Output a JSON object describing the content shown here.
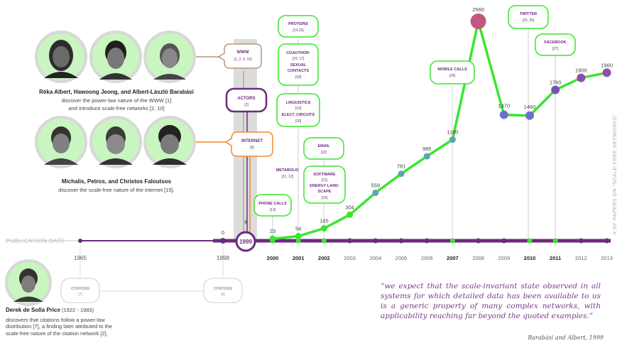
{
  "people": {
    "group1_names": "Réka Albert, Hawoong Jeong, and Albert-László Barabási",
    "group1_desc1": "discover the power-law nature of the WWW [1]",
    "group1_desc2": "and introduce scale-free networks [2, 10]",
    "group2_names": "Michalis, Petros, and Christos Faloutsos",
    "group2_desc": "discover the scale-free nature of the internet [15].",
    "price_name": "Derek de Solla Price",
    "price_years": "(1922 - 1983)",
    "price_desc1": "discovers that citations follow a power-law",
    "price_desc2": "distribution [7], a finding later attributed to the",
    "price_desc3": "scale-free nature of the citation network [2]."
  },
  "axis": {
    "label": "PUBLICATION DATE",
    "years": [
      "2000",
      "2001",
      "2002",
      "2003",
      "2004",
      "2005",
      "2006",
      "2007",
      "2008",
      "2009",
      "2010",
      "2011",
      "2012",
      "2013"
    ],
    "bold_years": [
      "2000",
      "2001",
      "2002",
      "2007",
      "2010",
      "2011"
    ],
    "year_1965": "1965",
    "year_1998": "1998",
    "year_1999": "1999",
    "y_label": "# OF PAPERS ON \"SCALE-FREE NETWORKS\""
  },
  "chart_data": {
    "type": "line",
    "x": [
      1998,
      1999,
      2000,
      2001,
      2002,
      2003,
      2004,
      2005,
      2006,
      2007,
      2008,
      2009,
      2010,
      2011,
      2012,
      2013
    ],
    "values": [
      0,
      4,
      23,
      54,
      145,
      304,
      559,
      781,
      985,
      1180,
      2560,
      1470,
      1460,
      1760,
      1900,
      1960
    ],
    "labels": [
      "0",
      "4",
      "23",
      "54",
      "145",
      "304",
      "559",
      "781",
      "985",
      "1180",
      "2560",
      "1470",
      "1460",
      "1760",
      "1900",
      "1960"
    ]
  },
  "callouts": {
    "www": {
      "title": "WWW",
      "refs": "[1, 2, 9, 10]"
    },
    "actors": {
      "title": "ACTORS",
      "refs": "[2]"
    },
    "internet": {
      "title": "INTERNET",
      "refs": "[5]"
    },
    "phone": {
      "title": "PHONE CALLS",
      "refs": "[13]"
    },
    "metabolic": {
      "title": "METABOLIC",
      "refs": "[11, 12]"
    },
    "proteins": {
      "title": "PROTEINS",
      "refs": "[14,15]"
    },
    "coauthor1": "COAUTHOR-",
    "coauthor_refs": "[16, 17]",
    "coauthor2": "SEXUAL",
    "coauthor3": "CONTACTS",
    "coauthor_refs2": "[18]",
    "linguistics": "LINGUISTICS",
    "linguistics_refs": "[19]",
    "circuits": "ELECT. CIRCUITS",
    "circuits_refs": "[20]",
    "email": {
      "title": "EMAIL",
      "refs": "[22]"
    },
    "software": "SOFTWARE",
    "software_refs": "[21]",
    "landscape1": "ENERGY LAND-",
    "landscape2": "SCAPE",
    "landscape_refs": "[23]",
    "mobile": {
      "title": "MOBILE CALLS",
      "refs": "[24]"
    },
    "twitter": {
      "title": "TWITTER",
      "refs": "[25, 26]"
    },
    "facebook": {
      "title": "FACEBOOK",
      "refs": "[27]"
    },
    "citations1": {
      "title": "CITATIONS",
      "refs": "[7]"
    },
    "citations2": {
      "title": "CITATIONS",
      "refs": "[8]"
    }
  },
  "quote": {
    "text": "“we expect that the scale-invariant state observed in all systems for which detailed data has been available to us is a generic property of many complex networks, with applicability reaching far beyond the quoted examples.”",
    "author": "Barabási and Albert, 1999"
  },
  "colors": {
    "green": "#39e62e",
    "purple": "#6a2c7f",
    "orange": "#f08a2c",
    "tan": "#b29a7a",
    "gray": "#cfcfcf",
    "pink": "#c2577d"
  }
}
